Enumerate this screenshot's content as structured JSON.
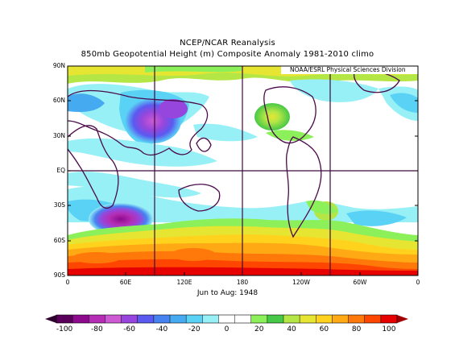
{
  "title": {
    "line1": "NCEP/NCAR Reanalysis",
    "line2": "850mb Geopotential Height (m) Composite Anomaly 1981-2010 climo"
  },
  "credit": "NOAA/ESRL Physical Sciences Division",
  "period": "Jun to Aug: 1948",
  "lat_labels": [
    "90N",
    "60N",
    "30N",
    "EQ",
    "30S",
    "60S",
    "90S"
  ],
  "lon_labels": [
    "0",
    "60E",
    "120E",
    "180",
    "120W",
    "60W",
    "0"
  ],
  "colorbar": {
    "ticks": [
      "-100",
      "-80",
      "-60",
      "-40",
      "-20",
      "0",
      "20",
      "40",
      "60",
      "80",
      "100"
    ],
    "colors": [
      "#5a005a",
      "#8c0a8c",
      "#b42db4",
      "#cd5ad2",
      "#9646dc",
      "#5a5af0",
      "#4682f0",
      "#46aaf0",
      "#5ad2f5",
      "#96f0f5",
      "#ffffff",
      "#ffffff",
      "#8cf05a",
      "#46c846",
      "#b4e646",
      "#e6e632",
      "#ffd21e",
      "#ffaa14",
      "#ff780a",
      "#ff4600",
      "#e60000"
    ]
  },
  "map": {
    "type": "heatmap",
    "domain": "Global lat-lon grid",
    "field": "850mb Geopotential Height Composite Anomaly (m)"
  }
}
